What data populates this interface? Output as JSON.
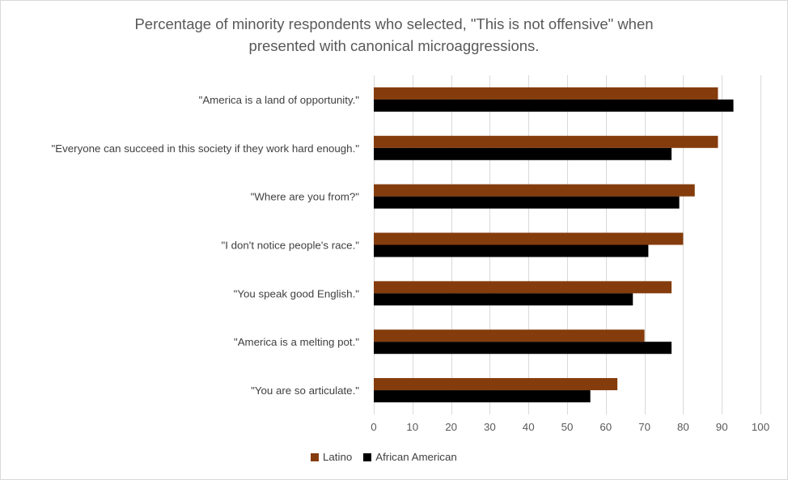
{
  "chart_data": {
    "type": "bar",
    "orientation": "horizontal",
    "title": "Percentage of minority respondents who selected, \"This is not offensive\" when presented with canonical microaggressions.",
    "title_lines": [
      "Percentage of minority respondents who selected, \"This is not offensive\" when",
      "presented with canonical microaggressions."
    ],
    "categories": [
      "\"America is a land of opportunity.\"",
      "\"Everyone can succeed in this society if they work hard enough.\"",
      "\"Where are you from?\"",
      "\"I don't notice people's race.\"",
      "\"You speak good English.\"",
      "\"America is a melting pot.\"",
      "\"You are so articulate.\""
    ],
    "series": [
      {
        "name": "Latino",
        "color": "#843c0c",
        "values": [
          89,
          89,
          83,
          80,
          77,
          70,
          63
        ]
      },
      {
        "name": "African American",
        "color": "#000000",
        "values": [
          93,
          77,
          79,
          71,
          67,
          77,
          56
        ]
      }
    ],
    "xlim": [
      0,
      100
    ],
    "xticks": [
      0,
      10,
      20,
      30,
      40,
      50,
      60,
      70,
      80,
      90,
      100
    ],
    "xlabel": "",
    "ylabel": "",
    "grid": true,
    "gridline_color": "#d9d9d9",
    "legend_position": "bottom"
  }
}
